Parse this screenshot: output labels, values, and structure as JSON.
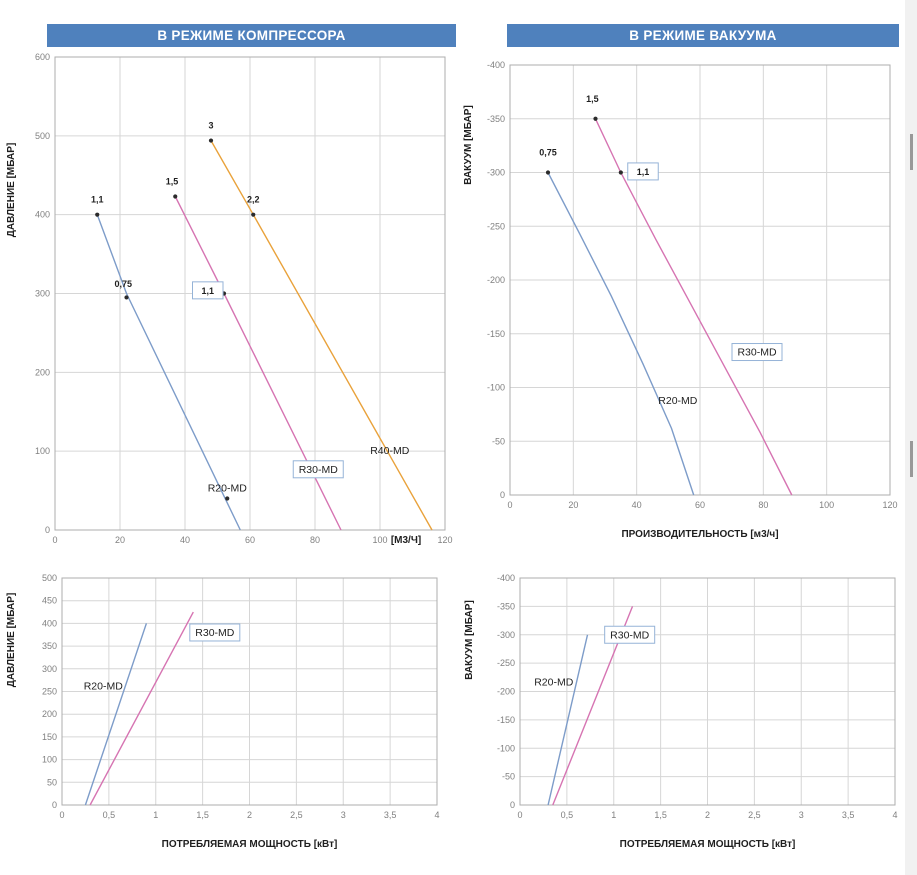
{
  "headers": {
    "left": "В РЕЖИМЕ КОМПРЕССОРА",
    "right": "В РЕЖИМЕ ВАКУУМА"
  },
  "colors": {
    "header_bg": "#4f81bd",
    "header_text": "#ffffff",
    "blue": "#7d9cc9",
    "pink": "#d674b2",
    "orange": "#e9a23b",
    "grid": "#d6d6d6",
    "frame": "#adadad",
    "tick": "#808080",
    "text": "#1f1f1f",
    "dot": "#2b2b2b",
    "box_border": "#95b3d7"
  },
  "chart_data": [
    {
      "id": "compressor-capacity",
      "type": "line",
      "title": "В РЕЖИМЕ КОМПРЕССОРА",
      "ylabel": "ДАВЛЕНИЕ [МБАР]",
      "x_unit": {
        "label": "[М3/Ч]",
        "x": 108
      },
      "xlim": [
        0,
        120
      ],
      "ylim": [
        0,
        600
      ],
      "xticks": [
        0,
        20,
        40,
        60,
        80,
        100,
        120
      ],
      "xtick_labels": [
        "0",
        "20",
        "40",
        "60",
        "80",
        "100",
        "120"
      ],
      "yticks": [
        0,
        100,
        200,
        300,
        400,
        500,
        600
      ],
      "ytick_labels": [
        "0",
        "100",
        "200",
        "300",
        "400",
        "500",
        "600"
      ],
      "grid": true,
      "legend_position": "none",
      "series": [
        {
          "name": "R20-MD",
          "color_key": "blue",
          "points": [
            [
              13,
              400
            ],
            [
              22,
              300
            ],
            [
              57,
              0
            ]
          ]
        },
        {
          "name": "R30-MD",
          "color_key": "pink",
          "points": [
            [
              37,
              423
            ],
            [
              52,
              300
            ],
            [
              88,
              0
            ]
          ]
        },
        {
          "name": "R40-MD",
          "color_key": "orange",
          "points": [
            [
              48,
              494
            ],
            [
              61,
              400
            ],
            [
              116,
              0
            ]
          ]
        }
      ],
      "dots": [
        [
          13,
          400
        ],
        [
          22,
          295
        ],
        [
          37,
          423
        ],
        [
          52,
          300
        ],
        [
          48,
          494
        ],
        [
          61,
          400
        ],
        [
          53,
          40
        ]
      ],
      "labels": [
        {
          "text": "1,1",
          "x": 13,
          "y": 420,
          "kind": "value"
        },
        {
          "text": "0,75",
          "x": 21,
          "y": 313,
          "kind": "value"
        },
        {
          "text": "1,5",
          "x": 36,
          "y": 443,
          "kind": "value"
        },
        {
          "text": "1,1",
          "x": 47,
          "y": 304,
          "kind": "value",
          "boxed": true
        },
        {
          "text": "3",
          "x": 48,
          "y": 514,
          "kind": "value"
        },
        {
          "text": "2,2",
          "x": 61,
          "y": 420,
          "kind": "value"
        },
        {
          "text": "R20-MD",
          "x": 53,
          "y": 53,
          "kind": "name"
        },
        {
          "text": "R30-MD",
          "x": 81,
          "y": 77,
          "kind": "name",
          "boxed": true
        },
        {
          "text": "R40-MD",
          "x": 103,
          "y": 101,
          "kind": "name"
        }
      ]
    },
    {
      "id": "vacuum-capacity",
      "type": "line",
      "title": "В РЕЖИМЕ ВАКУУМА",
      "ylabel": "ВАКУУМ [МБАР]",
      "xlabel": "ПРОИЗВОДИТЕЛЬНОСТЬ [м3/ч]",
      "xlim": [
        0,
        120
      ],
      "ylim": [
        0,
        -400
      ],
      "xticks": [
        0,
        20,
        40,
        60,
        80,
        100,
        120
      ],
      "xtick_labels": [
        "0",
        "20",
        "40",
        "60",
        "80",
        "100",
        "120"
      ],
      "yticks": [
        0,
        -50,
        -100,
        -150,
        -200,
        -250,
        -300,
        -350,
        -400
      ],
      "ytick_labels": [
        "0",
        "-50",
        "-100",
        "-150",
        "-200",
        "-250",
        "-300",
        "-350",
        "-400"
      ],
      "grid": true,
      "legend_position": "none",
      "series": [
        {
          "name": "R20-MD",
          "color_key": "blue",
          "points": [
            [
              12,
              -300
            ],
            [
              22,
              -243
            ],
            [
              32,
              -185
            ],
            [
              42,
              -122
            ],
            [
              51,
              -62
            ],
            [
              58,
              0
            ]
          ]
        },
        {
          "name": "R30-MD",
          "color_key": "pink",
          "points": [
            [
              27,
              -350
            ],
            [
              35,
              -300
            ],
            [
              46,
              -238
            ],
            [
              57,
              -178
            ],
            [
              68,
              -118
            ],
            [
              79,
              -58
            ],
            [
              89,
              0
            ]
          ]
        }
      ],
      "dots": [
        [
          12,
          -300
        ],
        [
          27,
          -350
        ],
        [
          35,
          -300
        ]
      ],
      "labels": [
        {
          "text": "0,75",
          "x": 12,
          "y": -319,
          "kind": "value"
        },
        {
          "text": "1,5",
          "x": 26,
          "y": -369,
          "kind": "value"
        },
        {
          "text": "1,1",
          "x": 42,
          "y": -301,
          "kind": "value",
          "boxed": true
        },
        {
          "text": "R20-MD",
          "x": 53,
          "y": -88,
          "kind": "name"
        },
        {
          "text": "R30-MD",
          "x": 78,
          "y": -133,
          "kind": "name",
          "boxed": true
        }
      ]
    },
    {
      "id": "compressor-power",
      "type": "line",
      "ylabel": "ДАВЛЕНИЕ [МБАР]",
      "xlabel": "ПОТРЕБЛЯЕМАЯ МОЩНОСТЬ [кВт]",
      "xlim": [
        0,
        4
      ],
      "ylim": [
        0,
        500
      ],
      "xticks": [
        0,
        0.5,
        1,
        1.5,
        2,
        2.5,
        3,
        3.5,
        4
      ],
      "xtick_labels": [
        "0",
        "0,5",
        "1",
        "1,5",
        "2",
        "2,5",
        "3",
        "3,5",
        "4"
      ],
      "yticks": [
        0,
        50,
        100,
        150,
        200,
        250,
        300,
        350,
        400,
        450,
        500
      ],
      "ytick_labels": [
        "0",
        "50",
        "100",
        "150",
        "200",
        "250",
        "300",
        "350",
        "400",
        "450",
        "500"
      ],
      "grid": true,
      "legend_position": "none",
      "series": [
        {
          "name": "R20-MD",
          "color_key": "blue",
          "points": [
            [
              0.25,
              0
            ],
            [
              0.9,
              400
            ]
          ]
        },
        {
          "name": "R30-MD",
          "color_key": "pink",
          "points": [
            [
              0.3,
              0
            ],
            [
              1.4,
              425
            ]
          ]
        }
      ],
      "dots": [],
      "labels": [
        {
          "text": "R20-MD",
          "x": 0.44,
          "y": 262,
          "kind": "name"
        },
        {
          "text": "R30-MD",
          "x": 1.63,
          "y": 380,
          "kind": "name",
          "boxed": true
        }
      ]
    },
    {
      "id": "vacuum-power",
      "type": "line",
      "ylabel": "ВАКУУМ [МБАР]",
      "xlabel": "ПОТРЕБЛЯЕМАЯ МОЩНОСТЬ [кВт]",
      "xlim": [
        0,
        4
      ],
      "ylim": [
        0,
        -400
      ],
      "xticks": [
        0,
        0.5,
        1,
        1.5,
        2,
        2.5,
        3,
        3.5,
        4
      ],
      "xtick_labels": [
        "0",
        "0,5",
        "1",
        "1,5",
        "2",
        "2,5",
        "3",
        "3,5",
        "4"
      ],
      "yticks": [
        0,
        -50,
        -100,
        -150,
        -200,
        -250,
        -300,
        -350,
        -400
      ],
      "ytick_labels": [
        "0",
        "-50",
        "-100",
        "-150",
        "-200",
        "-250",
        "-300",
        "-350",
        "-400"
      ],
      "grid": true,
      "legend_position": "none",
      "series": [
        {
          "name": "R20-MD",
          "color_key": "blue",
          "points": [
            [
              0.3,
              0
            ],
            [
              0.72,
              -300
            ]
          ]
        },
        {
          "name": "R30-MD",
          "color_key": "pink",
          "points": [
            [
              0.35,
              0
            ],
            [
              1.2,
              -350
            ]
          ]
        }
      ],
      "dots": [],
      "labels": [
        {
          "text": "R20-MD",
          "x": 0.36,
          "y": -217,
          "kind": "name"
        },
        {
          "text": "R30-MD",
          "x": 1.17,
          "y": -300,
          "kind": "name",
          "boxed": true
        }
      ]
    }
  ]
}
